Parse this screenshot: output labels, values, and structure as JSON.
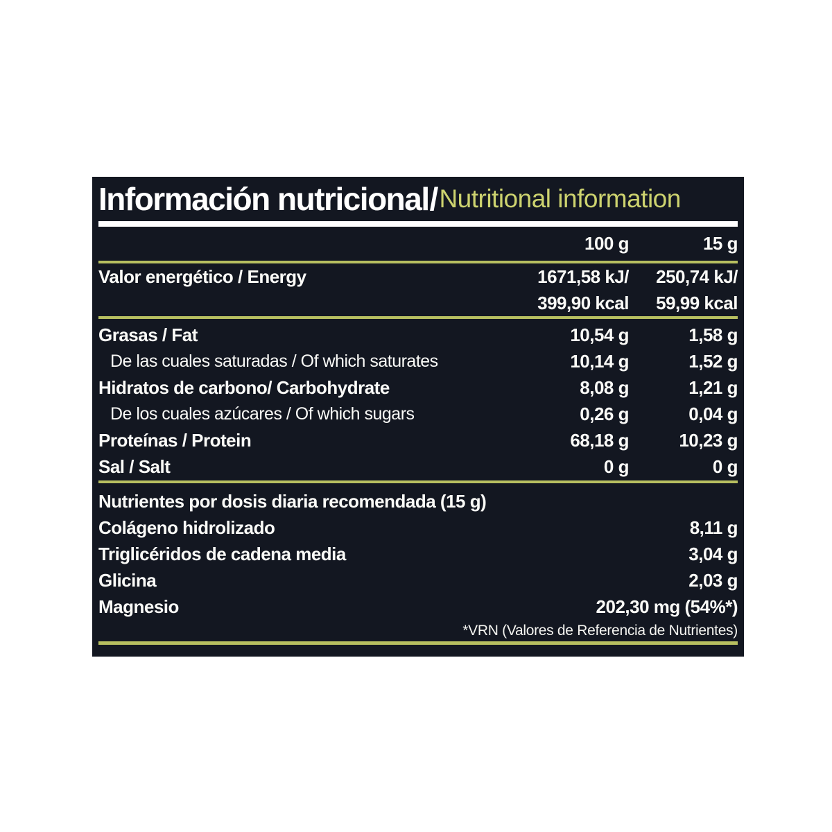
{
  "colors": {
    "panel_background": "#131721",
    "accent_text_green": "#cdd36f",
    "accent_line_green": "#b7bf60",
    "text_white": "#fafaf7"
  },
  "header": {
    "title_es": "Información nutricional",
    "slash": "/",
    "title_en": "Nutritional information"
  },
  "columns": {
    "per_100g": "100 g",
    "per_15g": "15 g"
  },
  "energy": {
    "label": "Valor energético / Energy",
    "kj_100g": "1671,58 kJ/",
    "kj_15g": "250,74 kJ/",
    "kcal_100g": "399,90 kcal",
    "kcal_15g": "59,99 kcal"
  },
  "macro_rows": [
    {
      "label": "Grasas / Fat",
      "per_100g": "10,54 g",
      "per_15g": "1,58 g"
    },
    {
      "label": "De las cuales saturadas / Of which saturates",
      "per_100g": "10,14 g",
      "per_15g": "1,52 g"
    },
    {
      "label": "Hidratos de carbono/ Carbohydrate",
      "per_100g": "8,08 g",
      "per_15g": "1,21 g"
    },
    {
      "label": "De los cuales azúcares / Of which sugars",
      "per_100g": "0,26 g",
      "per_15g": "0,04 g"
    },
    {
      "label": "Proteínas / Protein",
      "per_100g": "68,18 g",
      "per_15g": "10,23 g"
    },
    {
      "label": "Sal / Salt",
      "per_100g": "0 g",
      "per_15g": "0 g"
    }
  ],
  "daily_dose": {
    "heading": "Nutrientes por dosis diaria recomendada (15 g)",
    "rows": [
      {
        "label": "Colágeno hidrolizado",
        "value": "8,11 g"
      },
      {
        "label": "Triglicéridos de cadena media",
        "value": "3,04 g"
      },
      {
        "label": "Glicina",
        "value": "2,03 g"
      },
      {
        "label": "Magnesio",
        "value": "202,30 mg (54%*)"
      }
    ],
    "footnote": "*VRN (Valores de Referencia de Nutrientes)"
  }
}
